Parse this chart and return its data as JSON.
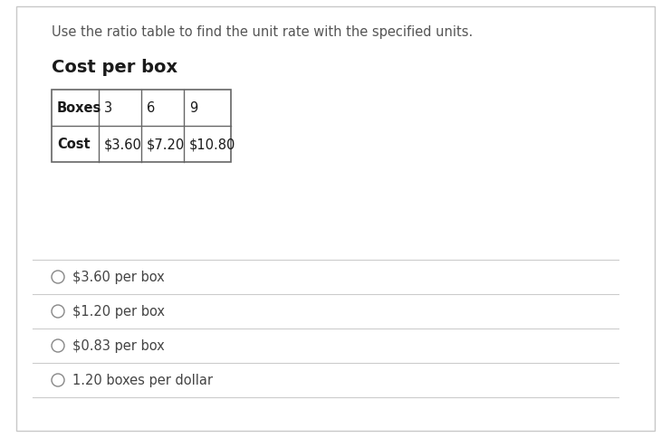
{
  "instruction": "Use the ratio table to find the unit rate with the specified units.",
  "subtitle": "Cost per box",
  "table": {
    "row1_label": "Boxes",
    "row1_values": [
      "3",
      "6",
      "9"
    ],
    "row2_label": "Cost",
    "row2_values": [
      "$3.60",
      "$7.20",
      "$10.80"
    ]
  },
  "options": [
    "$3.60 per box",
    "$1.20 per box",
    "$0.83 per box",
    "1.20 boxes per dollar"
  ],
  "bg_color": "#ffffff",
  "border_color": "#c8c8c8",
  "text_color": "#444444",
  "instruction_color": "#555555",
  "table_border_color": "#666666",
  "option_line_color": "#cccccc",
  "radio_color": "#888888",
  "instruction_fontsize": 10.5,
  "subtitle_fontsize": 14,
  "table_fontsize": 10.5,
  "option_fontsize": 10.5,
  "fig_width": 7.41,
  "fig_height": 4.85,
  "dpi": 100
}
